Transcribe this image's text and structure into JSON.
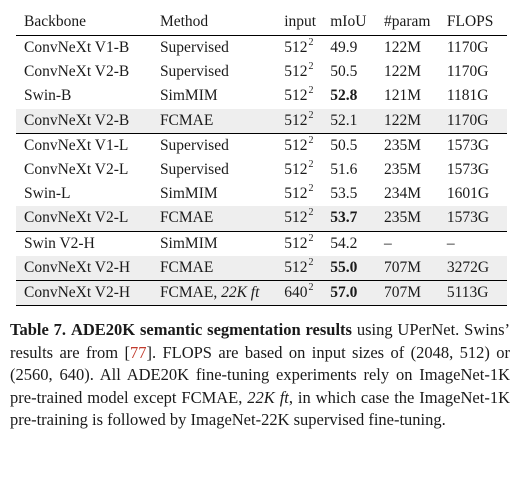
{
  "table": {
    "headers": [
      "Backbone",
      "Method",
      "input",
      "mIoU",
      "#param",
      "FLOPS"
    ],
    "rows": [
      {
        "backbone": "ConvNeXt V1-B",
        "method": "Supervised",
        "method_italic": "",
        "input_base": "512",
        "input_exp": "2",
        "miou": "49.9",
        "miou_bold": false,
        "param": "122M",
        "flops": "1170G",
        "shaded": false,
        "group_top": false
      },
      {
        "backbone": "ConvNeXt V2-B",
        "method": "Supervised",
        "method_italic": "",
        "input_base": "512",
        "input_exp": "2",
        "miou": "50.5",
        "miou_bold": false,
        "param": "122M",
        "flops": "1170G",
        "shaded": false,
        "group_top": false
      },
      {
        "backbone": "Swin-B",
        "method": "SimMIM",
        "method_italic": "",
        "input_base": "512",
        "input_exp": "2",
        "miou": "52.8",
        "miou_bold": true,
        "param": "121M",
        "flops": "1181G",
        "shaded": false,
        "group_top": false
      },
      {
        "backbone": "ConvNeXt V2-B",
        "method": "FCMAE",
        "method_italic": "",
        "input_base": "512",
        "input_exp": "2",
        "miou": "52.1",
        "miou_bold": false,
        "param": "122M",
        "flops": "1170G",
        "shaded": true,
        "group_top": false
      },
      {
        "backbone": "ConvNeXt V1-L",
        "method": "Supervised",
        "method_italic": "",
        "input_base": "512",
        "input_exp": "2",
        "miou": "50.5",
        "miou_bold": false,
        "param": "235M",
        "flops": "1573G",
        "shaded": false,
        "group_top": true
      },
      {
        "backbone": "ConvNeXt V2-L",
        "method": "Supervised",
        "method_italic": "",
        "input_base": "512",
        "input_exp": "2",
        "miou": "51.6",
        "miou_bold": false,
        "param": "235M",
        "flops": "1573G",
        "shaded": false,
        "group_top": false
      },
      {
        "backbone": "Swin-L",
        "method": "SimMIM",
        "method_italic": "",
        "input_base": "512",
        "input_exp": "2",
        "miou": "53.5",
        "miou_bold": false,
        "param": "234M",
        "flops": "1601G",
        "shaded": false,
        "group_top": false
      },
      {
        "backbone": "ConvNeXt V2-L",
        "method": "FCMAE",
        "method_italic": "",
        "input_base": "512",
        "input_exp": "2",
        "miou": "53.7",
        "miou_bold": true,
        "param": "235M",
        "flops": "1573G",
        "shaded": true,
        "group_top": false
      },
      {
        "backbone": "Swin V2-H",
        "method": "SimMIM",
        "method_italic": "",
        "input_base": "512",
        "input_exp": "2",
        "miou": "54.2",
        "miou_bold": false,
        "param": "–",
        "flops": "–",
        "shaded": false,
        "group_top": true
      },
      {
        "backbone": "ConvNeXt V2-H",
        "method": "FCMAE",
        "method_italic": "",
        "input_base": "512",
        "input_exp": "2",
        "miou": "55.0",
        "miou_bold": true,
        "param": "707M",
        "flops": "3272G",
        "shaded": true,
        "group_top": false
      },
      {
        "backbone": "ConvNeXt V2-H",
        "method": "FCMAE, ",
        "method_italic": "22K ft",
        "input_base": "640",
        "input_exp": "2",
        "miou": "57.0",
        "miou_bold": true,
        "param": "707M",
        "flops": "5113G",
        "shaded": true,
        "group_top": true
      }
    ]
  },
  "caption": {
    "label": "Table 7.",
    "bold_title": "ADE20K semantic segmentation results",
    "part1": " using UPerNet. Swins’ results are from [",
    "ref": "77",
    "part2": "]. FLOPS are based on input sizes of (2048, 512) or (2560, 640). All ADE20K fine-tuning experiments rely on ImageNet-1K pre-trained model except FCMAE, ",
    "italic": "22K ft",
    "part3": ", in which case the ImageNet-1K pre-training is followed by ImageNet-22K supervised fine-tuning.",
    "ref_color": "#c0392b"
  }
}
